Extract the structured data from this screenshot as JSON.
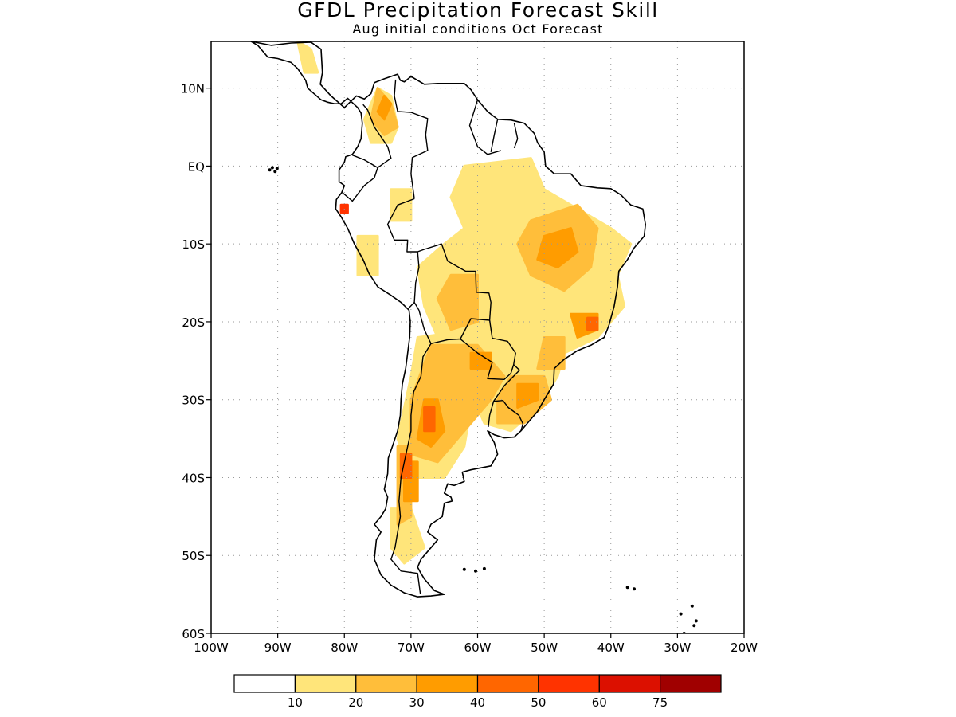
{
  "title": "GFDL Precipitation Forecast Skill",
  "subtitle": "Aug initial conditions  Oct Forecast",
  "axes": {
    "lon_labels": [
      "100W",
      "90W",
      "80W",
      "70W",
      "60W",
      "50W",
      "40W",
      "30W",
      "20W"
    ],
    "lon_values": [
      -100,
      -90,
      -80,
      -70,
      -60,
      -50,
      -40,
      -30,
      -20
    ],
    "lat_labels": [
      "10N",
      "EQ",
      "10S",
      "20S",
      "30S",
      "40S",
      "50S",
      "60S"
    ],
    "lat_values": [
      10,
      0,
      -10,
      -20,
      -30,
      -40,
      -50,
      -60
    ],
    "lon_range": [
      -100,
      -20
    ],
    "lat_range": [
      -60,
      16
    ],
    "grid": "dotted"
  },
  "colorbar": {
    "labels": [
      "10",
      "20",
      "30",
      "40",
      "50",
      "60",
      "75"
    ],
    "colors": [
      "#ffffff",
      "#ffe57a",
      "#ffbe3a",
      "#ff9c00",
      "#ff6600",
      "#ff3300",
      "#dc1000",
      "#a00000"
    ]
  },
  "map_data": {
    "type": "skill-map",
    "coastline_color": "#000000",
    "regions": [
      {
        "level": 1,
        "poly": [
          [
            -75,
            10
          ],
          [
            -73,
            9
          ],
          [
            -72,
            5
          ],
          [
            -73,
            3
          ],
          [
            -76,
            3
          ],
          [
            -77,
            6
          ]
        ]
      },
      {
        "level": 1,
        "poly": [
          [
            -73,
            -3
          ],
          [
            -70,
            -3
          ],
          [
            -70,
            -7
          ],
          [
            -73,
            -7
          ]
        ]
      },
      {
        "level": 1,
        "poly": [
          [
            -78,
            -9
          ],
          [
            -75,
            -9
          ],
          [
            -75,
            -14
          ],
          [
            -78,
            -14
          ]
        ]
      },
      {
        "level": 1,
        "poly": [
          [
            -62,
            0
          ],
          [
            -52,
            1
          ],
          [
            -50,
            -3
          ],
          [
            -44,
            -6
          ],
          [
            -40,
            -8
          ],
          [
            -37,
            -10
          ],
          [
            -39,
            -14
          ],
          [
            -38,
            -18
          ],
          [
            -42,
            -22
          ],
          [
            -47,
            -24
          ],
          [
            -48,
            -27
          ],
          [
            -51,
            -31
          ],
          [
            -55,
            -34
          ],
          [
            -59,
            -33
          ],
          [
            -62,
            -27
          ],
          [
            -66,
            -22
          ],
          [
            -68,
            -18
          ],
          [
            -69,
            -13
          ],
          [
            -65,
            -10
          ],
          [
            -62,
            -8
          ],
          [
            -64,
            -4
          ]
        ]
      },
      {
        "level": 1,
        "poly": [
          [
            -69,
            -22
          ],
          [
            -60,
            -21
          ],
          [
            -58,
            -26
          ],
          [
            -61,
            -31
          ],
          [
            -62,
            -36
          ],
          [
            -65,
            -40
          ],
          [
            -70,
            -40
          ],
          [
            -72,
            -35
          ],
          [
            -70,
            -27
          ]
        ]
      },
      {
        "level": 1,
        "poly": [
          [
            -73,
            -44
          ],
          [
            -70,
            -44
          ],
          [
            -68,
            -49
          ],
          [
            -71,
            -51
          ],
          [
            -73,
            -49
          ]
        ]
      },
      {
        "level": 1,
        "poly": [
          [
            -87,
            16
          ],
          [
            -85,
            15
          ],
          [
            -84,
            12
          ],
          [
            -86,
            12
          ]
        ]
      },
      {
        "level": 2,
        "poly": [
          [
            -75,
            10
          ],
          [
            -73,
            8
          ],
          [
            -72,
            5
          ],
          [
            -74,
            4
          ],
          [
            -76,
            6
          ]
        ]
      },
      {
        "level": 2,
        "poly": [
          [
            -52,
            -7
          ],
          [
            -45,
            -5
          ],
          [
            -42,
            -8
          ],
          [
            -43,
            -13
          ],
          [
            -47,
            -16
          ],
          [
            -52,
            -14
          ],
          [
            -54,
            -10
          ]
        ]
      },
      {
        "level": 2,
        "poly": [
          [
            -64,
            -14
          ],
          [
            -60,
            -14
          ],
          [
            -60,
            -20
          ],
          [
            -64,
            -21
          ],
          [
            -66,
            -17
          ]
        ]
      },
      {
        "level": 2,
        "poly": [
          [
            -67,
            -23
          ],
          [
            -60,
            -23
          ],
          [
            -56,
            -27
          ],
          [
            -58,
            -30
          ],
          [
            -62,
            -34
          ],
          [
            -66,
            -38
          ],
          [
            -70,
            -37
          ],
          [
            -70,
            -30
          ]
        ]
      },
      {
        "level": 2,
        "poly": [
          [
            -55,
            -27
          ],
          [
            -50,
            -27
          ],
          [
            -49,
            -30
          ],
          [
            -53,
            -33
          ],
          [
            -57,
            -33
          ],
          [
            -57,
            -30
          ]
        ]
      },
      {
        "level": 2,
        "poly": [
          [
            -72,
            -36
          ],
          [
            -70,
            -36
          ],
          [
            -70,
            -45
          ],
          [
            -72,
            -46
          ]
        ]
      },
      {
        "level": 2,
        "poly": [
          [
            -50,
            -22
          ],
          [
            -47,
            -22
          ],
          [
            -47,
            -26
          ],
          [
            -51,
            -26
          ]
        ]
      },
      {
        "level": 3,
        "poly": [
          [
            -74,
            9
          ],
          [
            -73,
            8
          ],
          [
            -74,
            6
          ],
          [
            -75,
            7
          ]
        ]
      },
      {
        "level": 3,
        "poly": [
          [
            -50,
            -9
          ],
          [
            -46,
            -8
          ],
          [
            -45,
            -11
          ],
          [
            -48,
            -13
          ],
          [
            -51,
            -12
          ]
        ]
      },
      {
        "level": 3,
        "poly": [
          [
            -68,
            -30
          ],
          [
            -66,
            -30
          ],
          [
            -65,
            -34
          ],
          [
            -67,
            -36
          ],
          [
            -69,
            -35
          ]
        ]
      },
      {
        "level": 3,
        "poly": [
          [
            -54,
            -28
          ],
          [
            -51,
            -28
          ],
          [
            -51,
            -30
          ],
          [
            -54,
            -31
          ]
        ]
      },
      {
        "level": 3,
        "poly": [
          [
            -71,
            -38
          ],
          [
            -69,
            -38
          ],
          [
            -69,
            -43
          ],
          [
            -71,
            -43
          ]
        ]
      },
      {
        "level": 3,
        "poly": [
          [
            -46,
            -19
          ],
          [
            -42,
            -19
          ],
          [
            -42,
            -21
          ],
          [
            -45,
            -22
          ]
        ]
      },
      {
        "level": 3,
        "poly": [
          [
            -61,
            -24
          ],
          [
            -58,
            -24
          ],
          [
            -58,
            -26
          ],
          [
            -61,
            -26
          ]
        ]
      },
      {
        "level": 4,
        "poly": [
          [
            -68,
            -31
          ],
          [
            -66.5,
            -31
          ],
          [
            -66.5,
            -34
          ],
          [
            -68,
            -34
          ]
        ]
      },
      {
        "level": 4,
        "poly": [
          [
            -71.5,
            -37
          ],
          [
            -70,
            -37
          ],
          [
            -70,
            -40
          ],
          [
            -71.5,
            -40
          ]
        ]
      },
      {
        "level": 4,
        "poly": [
          [
            -43.5,
            -19.5
          ],
          [
            -42,
            -19.5
          ],
          [
            -42,
            -21
          ],
          [
            -43.5,
            -21
          ]
        ]
      },
      {
        "level": 5,
        "poly": [
          [
            -80.5,
            -5
          ],
          [
            -79.5,
            -5
          ],
          [
            -79.5,
            -6
          ],
          [
            -80.5,
            -6
          ]
        ]
      }
    ]
  }
}
